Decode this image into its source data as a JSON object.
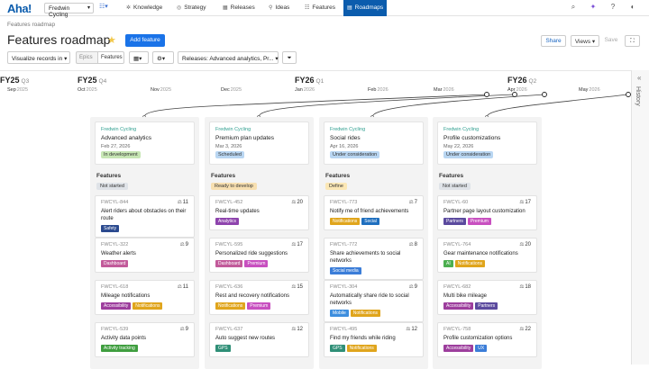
{
  "nav": {
    "logo": "Aha!",
    "workspace": "Fredwin Cycling",
    "items": [
      {
        "label": "Knowledge",
        "icon": "✲"
      },
      {
        "label": "Strategy",
        "icon": "◎"
      },
      {
        "label": "Releases",
        "icon": "▦"
      },
      {
        "label": "Ideas",
        "icon": "⚲"
      },
      {
        "label": "Features",
        "icon": "☷"
      },
      {
        "label": "Roadmaps",
        "icon": "▤"
      }
    ]
  },
  "header": {
    "breadcrumb": "Features roadmap",
    "title": "Features roadmap",
    "add_button": "Add feature",
    "share": "Share",
    "views": "Views",
    "save": "Save"
  },
  "filters": {
    "visualize": "Visualize records in",
    "seg_epics": "Epics",
    "seg_features": "Features",
    "releases": "Releases: Advanced analytics, Pr..."
  },
  "timeline": {
    "fiscal": [
      {
        "label": "FY25",
        "q": "Q3"
      },
      {
        "label": "FY25",
        "q": "Q4"
      },
      {
        "label": "FY26",
        "q": "Q1"
      },
      {
        "label": "FY26",
        "q": "Q2"
      }
    ],
    "months": [
      {
        "m": "Sep",
        "y": "2025"
      },
      {
        "m": "Oct",
        "y": "2025"
      },
      {
        "m": "Nov",
        "y": "2025"
      },
      {
        "m": "Dec",
        "y": "2025"
      },
      {
        "m": "Jan",
        "y": "2026"
      },
      {
        "m": "Feb",
        "y": "2026"
      },
      {
        "m": "Mar",
        "y": "2026"
      },
      {
        "m": "Apr",
        "y": "2026"
      },
      {
        "m": "May",
        "y": "2026"
      }
    ]
  },
  "history_label": "History",
  "columns": [
    {
      "release": {
        "workspace": "Fredwin Cycling",
        "name": "Advanced analytics",
        "date": "Feb 27, 2026",
        "status": "In development",
        "status_color": "#c7e6b4"
      },
      "section": "Features",
      "status": "Not started",
      "status_color": "#dfe3e8",
      "features": [
        {
          "id": "FWCYL-844",
          "score": "11",
          "title": "Alert riders about obstacles on their route",
          "tags": [
            {
              "t": "Safety",
              "c": "#2b4a8f"
            }
          ]
        },
        {
          "id": "FWCYL-322",
          "score": "9",
          "title": "Weather alerts",
          "tags": [
            {
              "t": "Dashboard",
              "c": "#c25a9a"
            }
          ]
        },
        {
          "id": "FWCYL-618",
          "score": "11",
          "title": "Mileage notifications",
          "tags": [
            {
              "t": "Accessibility",
              "c": "#9d3e9d"
            },
            {
              "t": "Notifications",
              "c": "#e0a51c"
            }
          ]
        },
        {
          "id": "FWCYL-539",
          "score": "9",
          "title": "Activity data points",
          "tags": [
            {
              "t": "Activity tracking",
              "c": "#3f9e3f"
            }
          ]
        }
      ]
    },
    {
      "release": {
        "workspace": "Fredwin Cycling",
        "name": "Premium plan updates",
        "date": "Mar 3, 2026",
        "status": "Scheduled",
        "status_color": "#b9d6f2"
      },
      "section": "Features",
      "status": "Ready to develop",
      "status_color": "#f7dfb0",
      "features": [
        {
          "id": "FWCYL-452",
          "score": "20",
          "title": "Real-time updates",
          "tags": [
            {
              "t": "Analytics",
              "c": "#8e44ad"
            }
          ]
        },
        {
          "id": "FWCYL-595",
          "score": "17",
          "title": "Personalized ride suggestions",
          "tags": [
            {
              "t": "Dashboard",
              "c": "#c25a9a"
            },
            {
              "t": "Premium",
              "c": "#c850c0"
            }
          ]
        },
        {
          "id": "FWCYL-636",
          "score": "15",
          "title": "Rest and recovery notifications",
          "tags": [
            {
              "t": "Notifications",
              "c": "#e0a51c"
            },
            {
              "t": "Premium",
              "c": "#c850c0"
            }
          ]
        },
        {
          "id": "FWCYL-637",
          "score": "12",
          "title": "Auto suggest new routes",
          "tags": [
            {
              "t": "GPS",
              "c": "#2f8f77"
            }
          ]
        }
      ]
    },
    {
      "release": {
        "workspace": "Fredwin Cycling",
        "name": "Social rides",
        "date": "Apr 16, 2026",
        "status": "Under consideration",
        "status_color": "#b9d6f2"
      },
      "section": "Features",
      "status": "Define",
      "status_color": "#fbe7b5",
      "features": [
        {
          "id": "FWCYL-773",
          "score": "7",
          "title": "Notify me of friend achievements",
          "tags": [
            {
              "t": "Notifications",
              "c": "#e0a51c"
            },
            {
              "t": "Social",
              "c": "#1f6fbf"
            }
          ]
        },
        {
          "id": "FWCYL-772",
          "score": "8",
          "title": "Share achievements to social networks",
          "tags": [
            {
              "t": "Social media",
              "c": "#3b7dd8"
            }
          ]
        },
        {
          "id": "FWCYL-304",
          "score": "9",
          "title": "Automatically share ride to social networks",
          "tags": [
            {
              "t": "Mobile",
              "c": "#3e8ede"
            },
            {
              "t": "Notifications",
              "c": "#e0a51c"
            }
          ]
        },
        {
          "id": "FWCYL-495",
          "score": "12",
          "title": "Find my friends while riding",
          "tags": [
            {
              "t": "GPS",
              "c": "#2f8f77"
            },
            {
              "t": "Notifications",
              "c": "#e0a51c"
            }
          ]
        }
      ]
    },
    {
      "release": {
        "workspace": "Fredwin Cycling",
        "name": "Profile customizations",
        "date": "May 22, 2026",
        "status": "Under consideration",
        "status_color": "#b9d6f2"
      },
      "section": "Features",
      "status": "Not started",
      "status_color": "#dfe3e8",
      "features": [
        {
          "id": "FWCYL-60",
          "score": "17",
          "title": "Partner page layout customization",
          "tags": [
            {
              "t": "Partners",
              "c": "#5b4a9e"
            },
            {
              "t": "Premium",
              "c": "#c850c0"
            }
          ]
        },
        {
          "id": "FWCYL-764",
          "score": "20",
          "title": "Gear maintenance notifications",
          "tags": [
            {
              "t": "AI",
              "c": "#4caf50"
            },
            {
              "t": "Notifications",
              "c": "#e0a51c"
            }
          ]
        },
        {
          "id": "FWCYL-682",
          "score": "18",
          "title": "Multi bike mileage",
          "tags": [
            {
              "t": "Accessibility",
              "c": "#9d3e9d"
            },
            {
              "t": "Partners",
              "c": "#5b4a9e"
            }
          ]
        },
        {
          "id": "FWCYL-758",
          "score": "22",
          "title": "Profile customization options",
          "tags": [
            {
              "t": "Accessibility",
              "c": "#9d3e9d"
            },
            {
              "t": "UX",
              "c": "#3b7dd8"
            }
          ]
        }
      ]
    }
  ]
}
